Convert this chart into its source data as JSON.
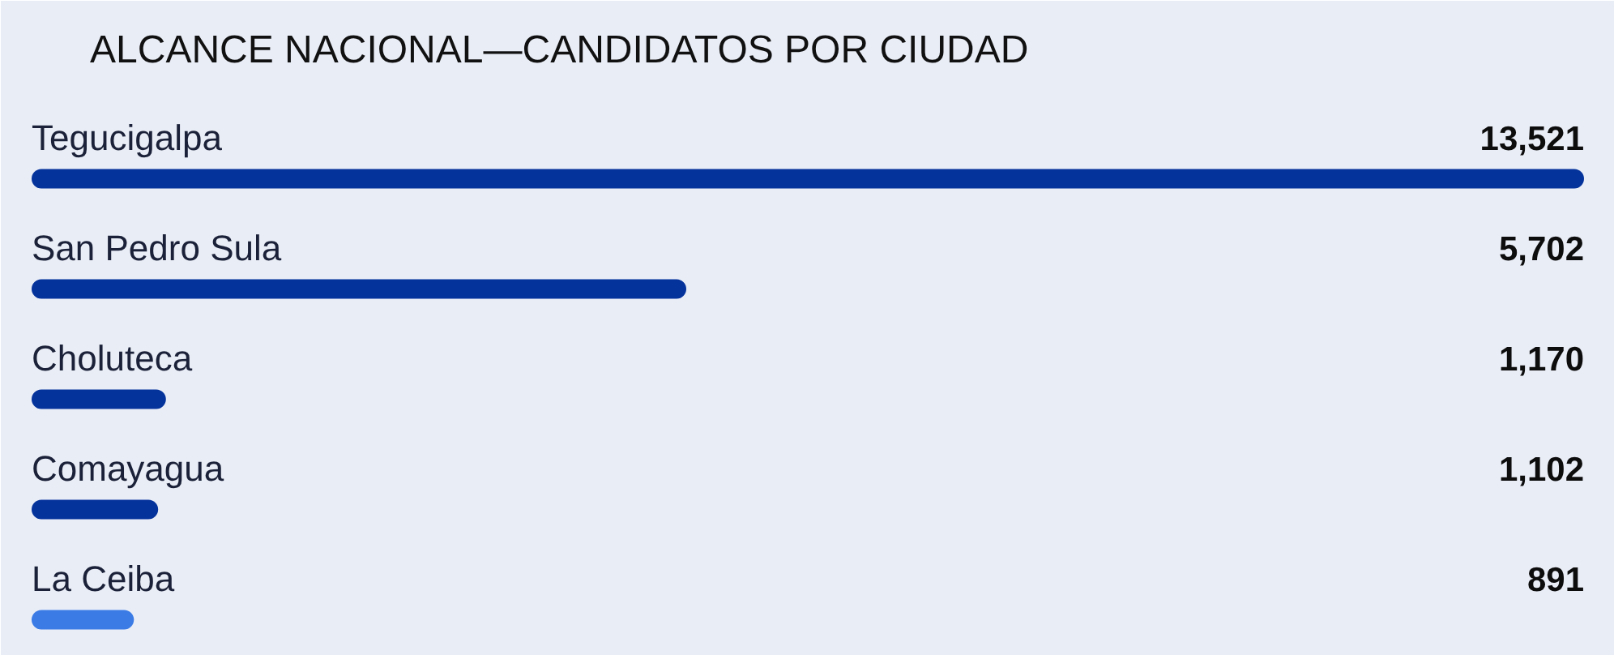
{
  "chart_data": {
    "type": "bar",
    "orientation": "horizontal",
    "title": "ALCANCE NACIONAL—CANDIDATOS POR CIUDAD",
    "categories": [
      "Tegucigalpa",
      "San Pedro Sula",
      "Choluteca",
      "Comayagua",
      "La Ceiba"
    ],
    "values": [
      13521,
      5702,
      1170,
      1102,
      891
    ],
    "colors": [
      "#05339c",
      "#05339c",
      "#05339c",
      "#05339c",
      "#3a7be6"
    ],
    "value_labels": [
      "13,521",
      "5,702",
      "1,170",
      "1,102",
      "891"
    ]
  }
}
